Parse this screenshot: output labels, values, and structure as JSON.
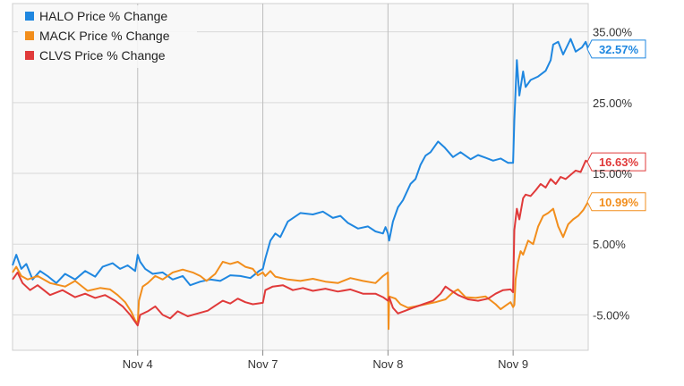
{
  "chart_data": {
    "type": "line",
    "title": "",
    "xlabel": "",
    "ylabel": "",
    "ylim": [
      -10,
      39
    ],
    "x_ticks": [
      "Nov 4",
      "Nov 7",
      "Nov 8",
      "Nov 9"
    ],
    "y_ticks": [
      "-5.00%",
      "5.00%",
      "15.00%",
      "25.00%",
      "35.00%"
    ],
    "y_tick_values": [
      -5,
      5,
      15,
      25,
      35
    ],
    "grid": true,
    "legend_position": "top-left",
    "x_domain": [
      0,
      4.6
    ],
    "series": [
      {
        "name": "HALO Price % Change",
        "color": "#1f87e0",
        "end_label": "32.57%",
        "points": [
          [
            0,
            2
          ],
          [
            0.03,
            3.5
          ],
          [
            0.07,
            1.5
          ],
          [
            0.11,
            2.2
          ],
          [
            0.16,
            0
          ],
          [
            0.22,
            1.2
          ],
          [
            0.28,
            0.5
          ],
          [
            0.35,
            -0.5
          ],
          [
            0.42,
            0.8
          ],
          [
            0.5,
            0
          ],
          [
            0.58,
            1.2
          ],
          [
            0.66,
            0.4
          ],
          [
            0.72,
            1.8
          ],
          [
            0.8,
            2.3
          ],
          [
            0.86,
            1.5
          ],
          [
            0.92,
            2
          ],
          [
            0.98,
            1.2
          ],
          [
            1.0,
            3.5
          ],
          [
            1.02,
            2.5
          ],
          [
            1.06,
            1.5
          ],
          [
            1.12,
            0.8
          ],
          [
            1.2,
            1
          ],
          [
            1.28,
            0
          ],
          [
            1.36,
            0.5
          ],
          [
            1.42,
            -0.8
          ],
          [
            1.5,
            -0.3
          ],
          [
            1.58,
            0
          ],
          [
            1.66,
            -0.2
          ],
          [
            1.74,
            0.6
          ],
          [
            1.82,
            0.5
          ],
          [
            1.9,
            0.2
          ],
          [
            1.97,
            1.2
          ],
          [
            2.0,
            1.5
          ],
          [
            2.02,
            3
          ],
          [
            2.06,
            5.5
          ],
          [
            2.1,
            6.5
          ],
          [
            2.14,
            6
          ],
          [
            2.2,
            8.2
          ],
          [
            2.3,
            9.4
          ],
          [
            2.4,
            9.2
          ],
          [
            2.48,
            9.6
          ],
          [
            2.56,
            8.7
          ],
          [
            2.62,
            9
          ],
          [
            2.68,
            8
          ],
          [
            2.76,
            7.2
          ],
          [
            2.84,
            7.5
          ],
          [
            2.9,
            6.8
          ],
          [
            2.96,
            6.5
          ],
          [
            2.98,
            7.4
          ],
          [
            3.0,
            6.5
          ],
          [
            3.01,
            5.5
          ],
          [
            3.04,
            8.2
          ],
          [
            3.08,
            10.2
          ],
          [
            3.12,
            11.2
          ],
          [
            3.18,
            13.5
          ],
          [
            3.22,
            14.2
          ],
          [
            3.26,
            16.2
          ],
          [
            3.3,
            17.5
          ],
          [
            3.34,
            18
          ],
          [
            3.4,
            19.5
          ],
          [
            3.45,
            18.7
          ],
          [
            3.52,
            17.3
          ],
          [
            3.58,
            18
          ],
          [
            3.66,
            17
          ],
          [
            3.72,
            17.6
          ],
          [
            3.78,
            17.2
          ],
          [
            3.84,
            16.8
          ],
          [
            3.9,
            17.1
          ],
          [
            3.96,
            16.5
          ],
          [
            4.0,
            16.5
          ],
          [
            4.01,
            22.5
          ],
          [
            4.03,
            31
          ],
          [
            4.05,
            26
          ],
          [
            4.08,
            29.4
          ],
          [
            4.1,
            27.2
          ],
          [
            4.14,
            28.2
          ],
          [
            4.2,
            28.7
          ],
          [
            4.26,
            29.5
          ],
          [
            4.3,
            31
          ],
          [
            4.32,
            33.2
          ],
          [
            4.36,
            33.6
          ],
          [
            4.4,
            31.8
          ],
          [
            4.46,
            34
          ],
          [
            4.5,
            32.2
          ],
          [
            4.55,
            32.8
          ],
          [
            4.58,
            33.6
          ],
          [
            4.6,
            32.57
          ]
        ]
      },
      {
        "name": "MACK Price % Change",
        "color": "#f28e1c",
        "end_label": "10.99%",
        "points": [
          [
            0,
            1
          ],
          [
            0.03,
            1.8
          ],
          [
            0.07,
            0.5
          ],
          [
            0.12,
            0
          ],
          [
            0.2,
            0.5
          ],
          [
            0.3,
            -0.5
          ],
          [
            0.42,
            -1
          ],
          [
            0.5,
            -0.2
          ],
          [
            0.6,
            -1.6
          ],
          [
            0.7,
            -1.2
          ],
          [
            0.78,
            -1.4
          ],
          [
            0.84,
            -2.2
          ],
          [
            0.9,
            -3.2
          ],
          [
            0.95,
            -4.6
          ],
          [
            0.98,
            -5.8
          ],
          [
            1.0,
            -6.2
          ],
          [
            1.01,
            -3
          ],
          [
            1.04,
            -1
          ],
          [
            1.08,
            -0.5
          ],
          [
            1.14,
            0.5
          ],
          [
            1.2,
            0
          ],
          [
            1.28,
            1
          ],
          [
            1.36,
            1.4
          ],
          [
            1.44,
            1
          ],
          [
            1.5,
            0.5
          ],
          [
            1.55,
            -0.2
          ],
          [
            1.62,
            0.8
          ],
          [
            1.68,
            2.5
          ],
          [
            1.74,
            2.2
          ],
          [
            1.8,
            2.5
          ],
          [
            1.86,
            1.8
          ],
          [
            1.92,
            1.5
          ],
          [
            1.96,
            0.6
          ],
          [
            2.0,
            1
          ],
          [
            2.02,
            0.5
          ],
          [
            2.06,
            1.2
          ],
          [
            2.1,
            0.4
          ],
          [
            2.2,
            0
          ],
          [
            2.3,
            -0.2
          ],
          [
            2.4,
            0.1
          ],
          [
            2.5,
            -0.3
          ],
          [
            2.6,
            -0.5
          ],
          [
            2.7,
            0.2
          ],
          [
            2.8,
            -0.2
          ],
          [
            2.9,
            -0.5
          ],
          [
            2.96,
            0.5
          ],
          [
            3.0,
            1
          ],
          [
            3.005,
            -7
          ],
          [
            3.01,
            -2.4
          ],
          [
            3.06,
            -2.7
          ],
          [
            3.1,
            -3.5
          ],
          [
            3.16,
            -4
          ],
          [
            3.22,
            -3.8
          ],
          [
            3.3,
            -3.5
          ],
          [
            3.38,
            -3.2
          ],
          [
            3.46,
            -2.8
          ],
          [
            3.52,
            -1.8
          ],
          [
            3.56,
            -1.4
          ],
          [
            3.62,
            -2.5
          ],
          [
            3.7,
            -2.6
          ],
          [
            3.78,
            -2.4
          ],
          [
            3.86,
            -3.5
          ],
          [
            3.9,
            -4.2
          ],
          [
            3.94,
            -3.7
          ],
          [
            3.98,
            -3.2
          ],
          [
            4.0,
            -3.9
          ],
          [
            4.01,
            -3.6
          ],
          [
            4.02,
            0
          ],
          [
            4.04,
            2.5
          ],
          [
            4.06,
            4
          ],
          [
            4.08,
            3.5
          ],
          [
            4.12,
            5.5
          ],
          [
            4.16,
            5
          ],
          [
            4.2,
            7.5
          ],
          [
            4.24,
            9
          ],
          [
            4.28,
            9.4
          ],
          [
            4.32,
            10
          ],
          [
            4.36,
            7.5
          ],
          [
            4.4,
            6
          ],
          [
            4.44,
            7.8
          ],
          [
            4.48,
            8.5
          ],
          [
            4.52,
            9
          ],
          [
            4.56,
            9.8
          ],
          [
            4.6,
            10.99
          ]
        ]
      },
      {
        "name": "CLVS Price % Change",
        "color": "#e03a3a",
        "end_label": "16.63%",
        "points": [
          [
            0,
            0
          ],
          [
            0.04,
            1
          ],
          [
            0.08,
            -0.5
          ],
          [
            0.14,
            -1.5
          ],
          [
            0.2,
            -0.8
          ],
          [
            0.3,
            -2.2
          ],
          [
            0.4,
            -1.5
          ],
          [
            0.5,
            -2.5
          ],
          [
            0.58,
            -2
          ],
          [
            0.66,
            -2.6
          ],
          [
            0.74,
            -2.2
          ],
          [
            0.82,
            -3
          ],
          [
            0.88,
            -3.8
          ],
          [
            0.94,
            -5
          ],
          [
            0.98,
            -6
          ],
          [
            1.0,
            -6.5
          ],
          [
            1.02,
            -5
          ],
          [
            1.08,
            -4.5
          ],
          [
            1.14,
            -3.8
          ],
          [
            1.2,
            -5
          ],
          [
            1.26,
            -5.5
          ],
          [
            1.32,
            -4.5
          ],
          [
            1.4,
            -5.2
          ],
          [
            1.48,
            -4.8
          ],
          [
            1.56,
            -4.4
          ],
          [
            1.62,
            -3.7
          ],
          [
            1.68,
            -3
          ],
          [
            1.74,
            -3.4
          ],
          [
            1.8,
            -2.7
          ],
          [
            1.86,
            -3.2
          ],
          [
            1.92,
            -3.5
          ],
          [
            2.0,
            -3.3
          ],
          [
            2.02,
            -1.5
          ],
          [
            2.08,
            -1
          ],
          [
            2.16,
            -0.8
          ],
          [
            2.24,
            -1.5
          ],
          [
            2.32,
            -1.2
          ],
          [
            2.4,
            -1.6
          ],
          [
            2.5,
            -1.3
          ],
          [
            2.6,
            -1.7
          ],
          [
            2.7,
            -1.4
          ],
          [
            2.8,
            -2
          ],
          [
            2.9,
            -2
          ],
          [
            2.96,
            -2.5
          ],
          [
            3.0,
            -3
          ],
          [
            3.01,
            -2.5
          ],
          [
            3.04,
            -4
          ],
          [
            3.08,
            -4.8
          ],
          [
            3.14,
            -4.4
          ],
          [
            3.2,
            -4
          ],
          [
            3.28,
            -3.5
          ],
          [
            3.36,
            -3
          ],
          [
            3.42,
            -2
          ],
          [
            3.46,
            -1
          ],
          [
            3.5,
            -1.5
          ],
          [
            3.56,
            -2.2
          ],
          [
            3.64,
            -2.8
          ],
          [
            3.72,
            -3
          ],
          [
            3.8,
            -2.7
          ],
          [
            3.86,
            -2
          ],
          [
            3.92,
            -1.5
          ],
          [
            3.98,
            -1.4
          ],
          [
            4.0,
            -1.8
          ],
          [
            4.01,
            7
          ],
          [
            4.03,
            10
          ],
          [
            4.05,
            8.5
          ],
          [
            4.08,
            11.5
          ],
          [
            4.1,
            12
          ],
          [
            4.14,
            11.8
          ],
          [
            4.18,
            12.6
          ],
          [
            4.22,
            13.5
          ],
          [
            4.26,
            13
          ],
          [
            4.3,
            14.2
          ],
          [
            4.34,
            13.5
          ],
          [
            4.38,
            14.5
          ],
          [
            4.42,
            14.2
          ],
          [
            4.46,
            14.8
          ],
          [
            4.5,
            15.4
          ],
          [
            4.54,
            15.2
          ],
          [
            4.58,
            16.8
          ],
          [
            4.6,
            16.63
          ]
        ]
      }
    ]
  }
}
